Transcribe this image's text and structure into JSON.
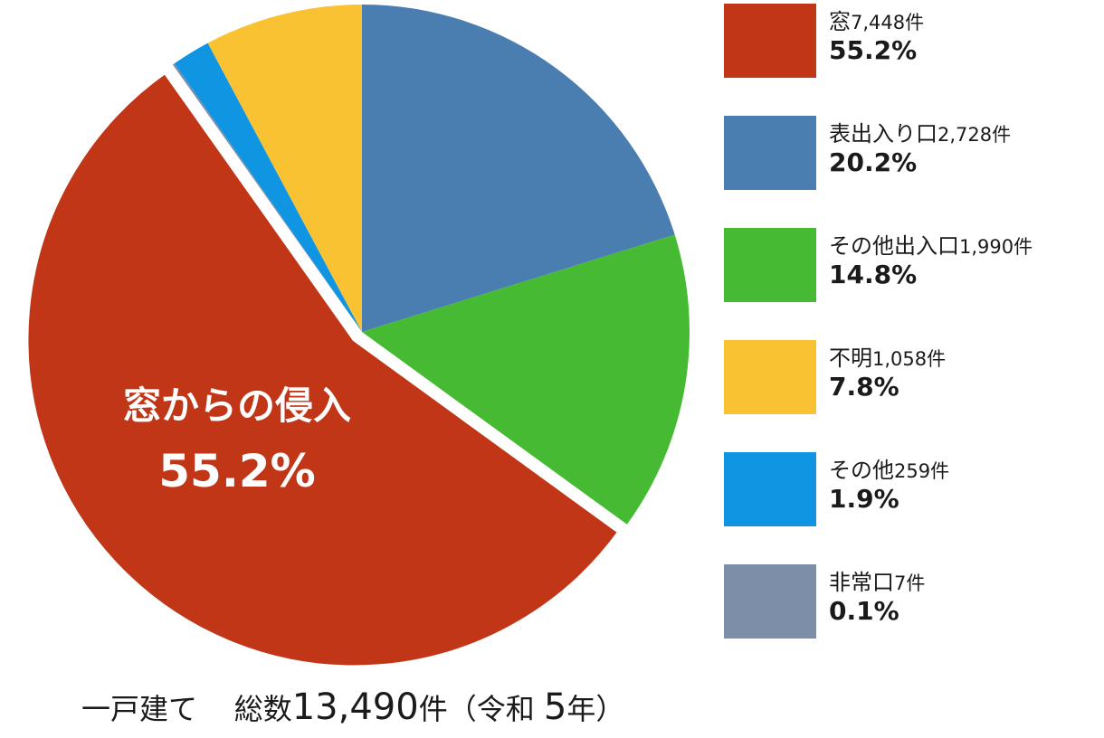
{
  "chart_data": {
    "type": "pie",
    "slices": [
      {
        "label": "窓",
        "count": "7,448件",
        "value": 55.2,
        "percent_label": "55.2%",
        "color": "#c03617"
      },
      {
        "label": "表出入り口",
        "count": "2,728件",
        "value": 20.2,
        "percent_label": "20.2%",
        "color": "#4a7db0"
      },
      {
        "label": "その他出入口",
        "count": "1,990件",
        "value": 14.8,
        "percent_label": "14.8%",
        "color": "#46ba33"
      },
      {
        "label": "不明",
        "count": "1,058件",
        "value": 7.8,
        "percent_label": "7.8%",
        "color": "#f8c232"
      },
      {
        "label": "その他",
        "count": "259件",
        "value": 1.9,
        "percent_label": "1.9%",
        "color": "#0f95e2"
      },
      {
        "label": "非常口",
        "count": "7件",
        "value": 0.1,
        "percent_label": "0.1%",
        "color": "#7d8fa8"
      }
    ],
    "draw_order": [
      1,
      2,
      0,
      5,
      4,
      3
    ],
    "exploded_slice": "窓",
    "annotation": {
      "title": "窓からの侵入",
      "value": "55.2%"
    },
    "legend_position": "right"
  },
  "caption": {
    "prefix": "一戸建て",
    "total_label": "総数",
    "total_value": "13,490",
    "suffix": "件（令和",
    "year": "5",
    "end": "年）"
  }
}
